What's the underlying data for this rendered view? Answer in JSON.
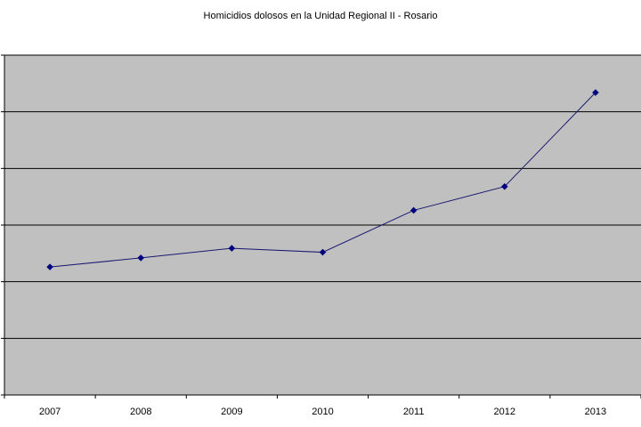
{
  "chart_data": {
    "type": "line",
    "title": "Homicidios dolosos en la Unidad Regional II - Rosario",
    "xlabel": "",
    "ylabel": "",
    "categories": [
      "2007",
      "2008",
      "2009",
      "2010",
      "2011",
      "2012",
      "2013"
    ],
    "series": [
      {
        "values": [
          2.26,
          2.42,
          2.59,
          2.52,
          3.26,
          3.68,
          5.34
        ]
      }
    ],
    "ylim": [
      0,
      6
    ],
    "grid": true,
    "legend": "none",
    "colors": {
      "plot_background": "#c0c0c0",
      "gridline": "#000000",
      "line": "#191970",
      "marker": "#000080"
    }
  }
}
